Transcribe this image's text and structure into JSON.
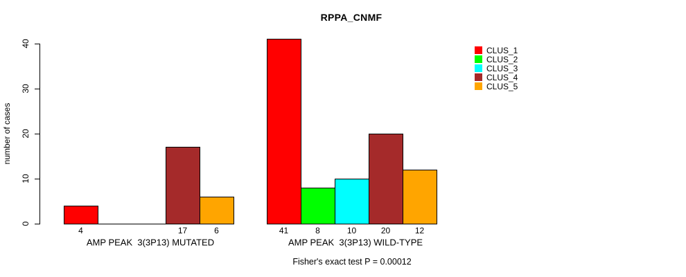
{
  "chart_data": {
    "type": "bar",
    "title": "RPPA_CNMF",
    "ylabel": "number of cases",
    "xlabel": "",
    "ylim": [
      0,
      40
    ],
    "yticks": [
      0,
      10,
      20,
      30,
      40
    ],
    "grid": false,
    "legend_position": "right",
    "categories": [
      "AMP PEAK  3(3P13) MUTATED",
      "AMP PEAK  3(3P13) WILD-TYPE"
    ],
    "series": [
      {
        "name": "CLUS_1",
        "color": "#FF0000",
        "values": [
          4,
          41
        ]
      },
      {
        "name": "CLUS_2",
        "color": "#00FF00",
        "values": [
          0,
          8
        ]
      },
      {
        "name": "CLUS_3",
        "color": "#00FFFF",
        "values": [
          0,
          10
        ]
      },
      {
        "name": "CLUS_4",
        "color": "#A52A2A",
        "values": [
          17,
          20
        ]
      },
      {
        "name": "CLUS_5",
        "color": "#FFA500",
        "values": [
          6,
          12
        ]
      }
    ],
    "bar_value_labels": {
      "group_mutated": [
        4,
        null,
        null,
        17,
        6
      ],
      "group_wildtype": [
        41,
        8,
        10,
        20,
        12
      ],
      "note_zero_values_unlabeled": true
    },
    "annotation": "Fisher's exact test P = 0.00012"
  }
}
